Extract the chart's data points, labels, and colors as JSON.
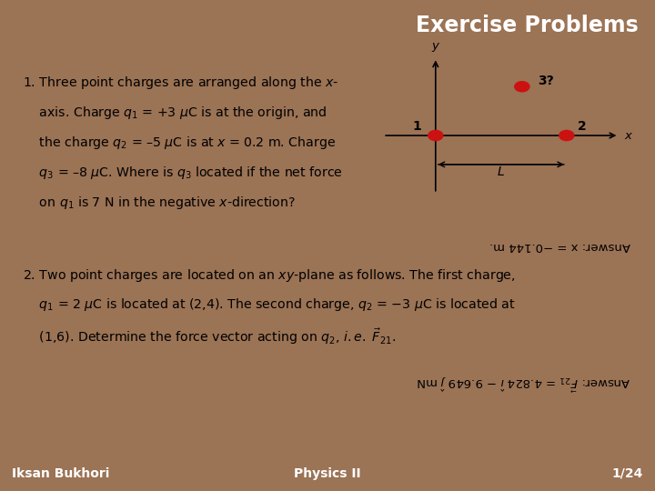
{
  "title": "Exercise Problems",
  "title_color": "#ffffff",
  "header_bg_color": "#9B7355",
  "main_bg_color": "#9B7355",
  "content_bg_color": "#f5f2ee",
  "footer_bg_color": "#9B7355",
  "footer_left": "Iksan Bukhori",
  "footer_center": "Physics II",
  "footer_right": "1/24",
  "answer1": "Answer: x = −0.144 m.",
  "answer2_plain": "Answer: F21 = 4.824 i − 9.649 j mN"
}
